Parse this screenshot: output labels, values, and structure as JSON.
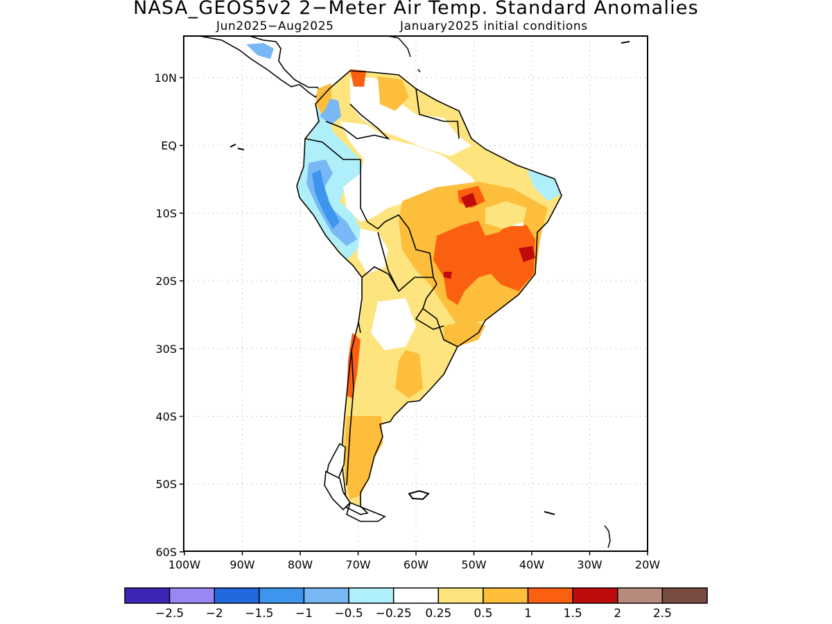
{
  "title": "NASA_GEOS5v2 2−Meter Air Temp. Standard Anomalies",
  "subtitle_left": "Jun2025−Aug2025",
  "subtitle_right": "January2025 initial conditions",
  "lat_labels": [
    "10N",
    "EQ",
    "10S",
    "20S",
    "30S",
    "40S",
    "50S",
    "60S"
  ],
  "lon_labels": [
    "100W",
    "90W",
    "80W",
    "70W",
    "60W",
    "50W",
    "40W",
    "30W",
    "20W"
  ],
  "colorbar": {
    "colors": [
      "#3f25b7",
      "#9b87f3",
      "#2468e0",
      "#3d95ee",
      "#78b8f5",
      "#aeeffa",
      "#ffffff",
      "#fde47e",
      "#fdbe3c",
      "#fb6010",
      "#bf0b0b",
      "#b68a7c",
      "#7b4d42"
    ],
    "labels": [
      "−2.5",
      "−2",
      "−1.5",
      "−1",
      "−0.5",
      "−0.25",
      "0.25",
      "0.5",
      "1",
      "1.5",
      "2",
      "2.5"
    ]
  }
}
